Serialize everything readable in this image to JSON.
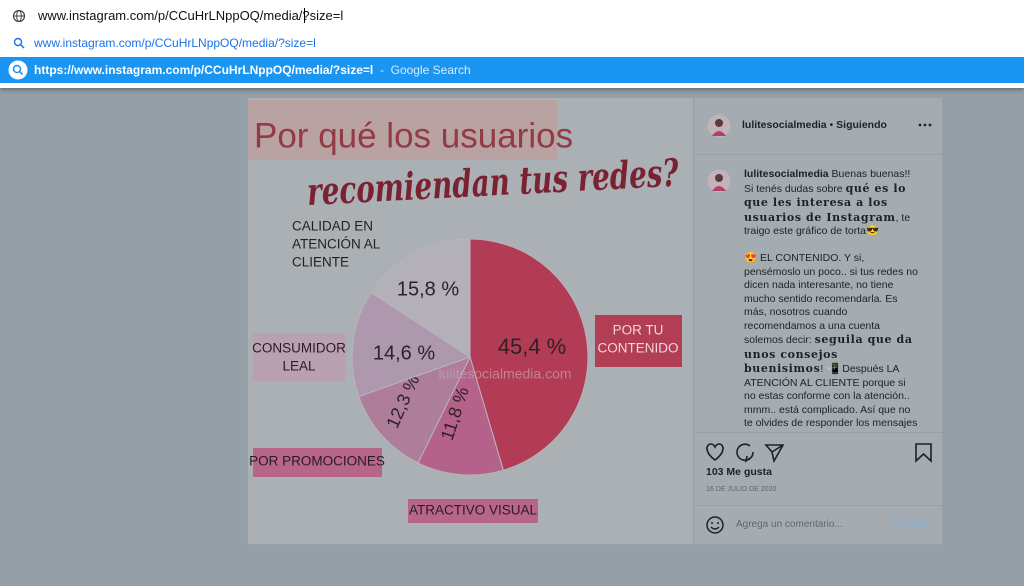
{
  "browser": {
    "omnibox": {
      "input": "www.instagram.com/p/CCuHrLNppOQ/media/?size=l",
      "suggestions": [
        {
          "text": "www.instagram.com/p/CCuHrLNppOQ/media/?size=l"
        },
        {
          "text": "https://www.instagram.com/p/CCuHrLNppOQ/media/?size=l",
          "separator": "-",
          "source": "Google Search"
        }
      ]
    }
  },
  "post": {
    "image": {
      "title_line1": "Por qué los usuarios",
      "title_line2": "recomiendan tus redes?",
      "watermark": "lulitesocialmedia.com",
      "slices": [
        {
          "label": [
            "POR TU",
            "CONTENIDO"
          ],
          "value": 45.4,
          "value_label": "45,4 %"
        },
        {
          "label": [
            "ATRACTIVO VISUAL"
          ],
          "value": 11.8,
          "value_label": "11,8 %"
        },
        {
          "label": [
            "POR PROMOCIONES"
          ],
          "value": 12.3,
          "value_label": "12,3 %"
        },
        {
          "label": [
            "CONSUMIDOR",
            "LEAL"
          ],
          "value": 14.6,
          "value_label": "14,6 %"
        },
        {
          "label": [
            "CALIDAD EN",
            "ATENCIÓN AL",
            "CLIENTE"
          ],
          "value": 15.8,
          "value_label": "15,8 %"
        }
      ]
    },
    "author": "lulitesocialmedia",
    "dot": "•",
    "follow_status": "Siguiendo",
    "caption": [
      [
        {
          "text": "lulitesocialmedia",
          "style": "user"
        },
        {
          "text": " Buenas buenas!! Si tenés dudas sobre "
        },
        {
          "text": "qué es lo que les interesa a los usuarios de Instagram",
          "style": "serif"
        },
        {
          "text": ", te traigo este gráfico de torta😎"
        }
      ],
      [
        {
          "text": "😍 EL CONTENIDO. Y si, pensémoslo un poco.. si tus redes no dicen nada interesante, no tiene mucho sentido recomendarla. Es más, nosotros cuando recomendamos a una cuenta solemos decir: "
        },
        {
          "text": "seguila que da unos consejos buenisimos",
          "style": "serif"
        },
        {
          "text": "! 📲 Después LA ATENCIÓN AL CLIENTE porque si no estas conforme con la atención.. mmm.. está complicado. Así que no te olvides de responder los mensajes y comentarios, interactuar y ser amable! 💕Claramente los CONSUMIDORES"
        }
      ]
    ],
    "likes": "103 Me gusta",
    "date": "16 DE JULIO DE 2020",
    "comment_placeholder": "Agrega un comentario...",
    "publish": "Publicar"
  }
}
